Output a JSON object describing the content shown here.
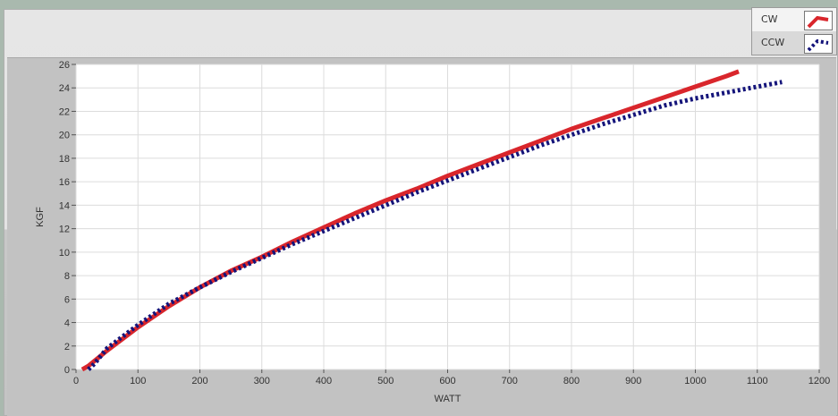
{
  "legend": {
    "entries": [
      {
        "label": "CW",
        "color": "#d9262c",
        "style": "solid"
      },
      {
        "label": "CCW",
        "color": "#14147a",
        "style": "dotted"
      }
    ]
  },
  "chart_data": {
    "type": "line",
    "title": "",
    "xlabel": "WATT",
    "ylabel": "KGF",
    "xlim": [
      0,
      1200
    ],
    "ylim": [
      0,
      26
    ],
    "xticks": [
      0,
      100,
      200,
      300,
      400,
      500,
      600,
      700,
      800,
      900,
      1000,
      1100,
      1200
    ],
    "yticks": [
      0,
      2,
      4,
      6,
      8,
      10,
      12,
      14,
      16,
      18,
      20,
      22,
      24,
      26
    ],
    "grid": true,
    "legend_position": "top-right",
    "series": [
      {
        "name": "CW",
        "color": "#d9262c",
        "x": [
          10,
          20,
          50,
          100,
          150,
          200,
          250,
          300,
          350,
          400,
          450,
          500,
          550,
          600,
          650,
          700,
          750,
          800,
          850,
          900,
          950,
          1000,
          1050,
          1070
        ],
        "y": [
          0,
          0.3,
          1.6,
          3.6,
          5.4,
          7.0,
          8.4,
          9.6,
          10.9,
          12.1,
          13.3,
          14.4,
          15.4,
          16.5,
          17.5,
          18.5,
          19.5,
          20.5,
          21.4,
          22.3,
          23.2,
          24.1,
          25.0,
          25.4
        ]
      },
      {
        "name": "CCW",
        "color": "#14147a",
        "x": [
          20,
          30,
          50,
          100,
          150,
          200,
          250,
          300,
          350,
          400,
          450,
          500,
          550,
          600,
          650,
          700,
          750,
          800,
          850,
          900,
          950,
          1000,
          1050,
          1100,
          1140
        ],
        "y": [
          0,
          0.5,
          1.8,
          3.8,
          5.6,
          7.0,
          8.3,
          9.5,
          10.7,
          11.8,
          12.9,
          14.0,
          15.1,
          16.1,
          17.1,
          18.1,
          19.1,
          20.0,
          20.9,
          21.7,
          22.5,
          23.1,
          23.6,
          24.1,
          24.5
        ]
      }
    ]
  }
}
